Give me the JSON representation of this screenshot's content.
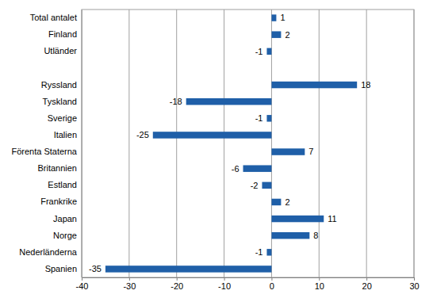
{
  "chart_data": {
    "type": "bar",
    "orientation": "horizontal",
    "categories": [
      "Total antalet",
      "Finland",
      "Utländer",
      null,
      "Ryssland",
      "Tyskland",
      "Sverige",
      "Italien",
      "Förenta Staterna",
      "Britannien",
      "Estland",
      "Frankrike",
      "Japan",
      "Norge",
      "Nederländerna",
      "Spanien"
    ],
    "values": [
      1,
      2,
      -1,
      null,
      18,
      -18,
      -1,
      -25,
      7,
      -6,
      -2,
      2,
      11,
      8,
      -1,
      -35
    ],
    "color": "#1f5fa8",
    "xlim": [
      -40,
      30
    ],
    "xticks": [
      -40,
      -30,
      -20,
      -10,
      0,
      10,
      20,
      30
    ],
    "grid": true,
    "data_labels": true
  }
}
